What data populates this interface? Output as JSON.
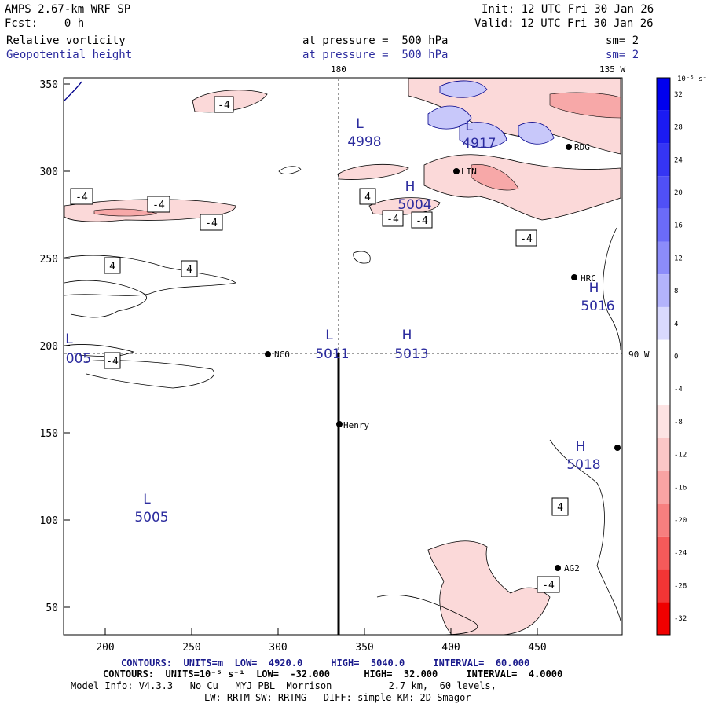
{
  "header": {
    "model": "AMPS 2.67-km WRF SP",
    "fcst": "Fcst:    0 h",
    "init": "Init: 12 UTC Fri 30 Jan 26",
    "valid": "Valid: 12 UTC Fri 30 Jan 26",
    "field1": "Relative vorticity",
    "field1_level": "at pressure =  500 hPa",
    "field1_sm": "sm= 2",
    "field2": "Geopotential height",
    "field2_level": "at pressure =  500 hPa",
    "field2_sm": "sm= 2"
  },
  "map": {
    "lon_labels": {
      "top_center": "180",
      "top_right": "135 W",
      "right_mid": "90 W"
    },
    "x_ticks": [
      "200",
      "250",
      "300",
      "350",
      "400",
      "450"
    ],
    "y_ticks": [
      "350",
      "300",
      "250",
      "200",
      "150",
      "100",
      "50"
    ],
    "stations": [
      {
        "id": "NCO"
      },
      {
        "id": "Henry"
      },
      {
        "id": "HRC"
      },
      {
        "id": "AG2"
      },
      {
        "id": "RDG"
      },
      {
        "id": "LIN"
      }
    ],
    "pressure_centers": [
      {
        "type": "L",
        "value": "4998"
      },
      {
        "type": "H",
        "value": "5004"
      },
      {
        "type": "L",
        "value": "5011"
      },
      {
        "type": "H",
        "value": "5013"
      },
      {
        "type": "H",
        "value": "5016"
      },
      {
        "type": "H",
        "value": "5018"
      },
      {
        "type": "L",
        "value": "5005"
      },
      {
        "type": "L",
        "value": "005"
      },
      {
        "type": "L",
        "value": "4917"
      }
    ],
    "contour_labels": [
      "-4",
      "-4",
      "-4",
      "-4",
      "-4",
      "4",
      "4",
      "4",
      "-4",
      "-4",
      "-4",
      "4",
      "-4"
    ]
  },
  "colorbar": {
    "unit": "10⁻⁵ s⁻¹",
    "ticks": [
      "32",
      "28",
      "24",
      "20",
      "16",
      "12",
      "8",
      "4",
      "0",
      "-4",
      "-8",
      "-12",
      "-16",
      "-20",
      "-24",
      "-28",
      "-32"
    ],
    "colors": [
      "#0000ee",
      "#1b1bf2",
      "#3535f4",
      "#5050f6",
      "#6b6bf8",
      "#8c8cfa",
      "#b3b3fc",
      "#d9d9fe",
      "#ffffff",
      "#ffffff",
      "#fde3e3",
      "#fbc6c6",
      "#f9a3a3",
      "#f77f7f",
      "#f55a5a",
      "#f33535",
      "#f00000"
    ]
  },
  "footer": {
    "line1": "CONTOURS:  UNITS=m  LOW=  4920.0     HIGH=  5040.0     INTERVAL=  60.000",
    "line2": "CONTOURS:  UNITS=10⁻⁵ s⁻¹  LOW=  -32.000      HIGH=  32.000     INTERVAL=  4.0000",
    "line3": "Model Info: V4.3.3   No Cu   MYJ PBL  Morrison          2.7 km,  60 levels,",
    "line4": "LW: RRTM SW: RRTMG   DIFF: simple KM: 2D Smagor"
  }
}
